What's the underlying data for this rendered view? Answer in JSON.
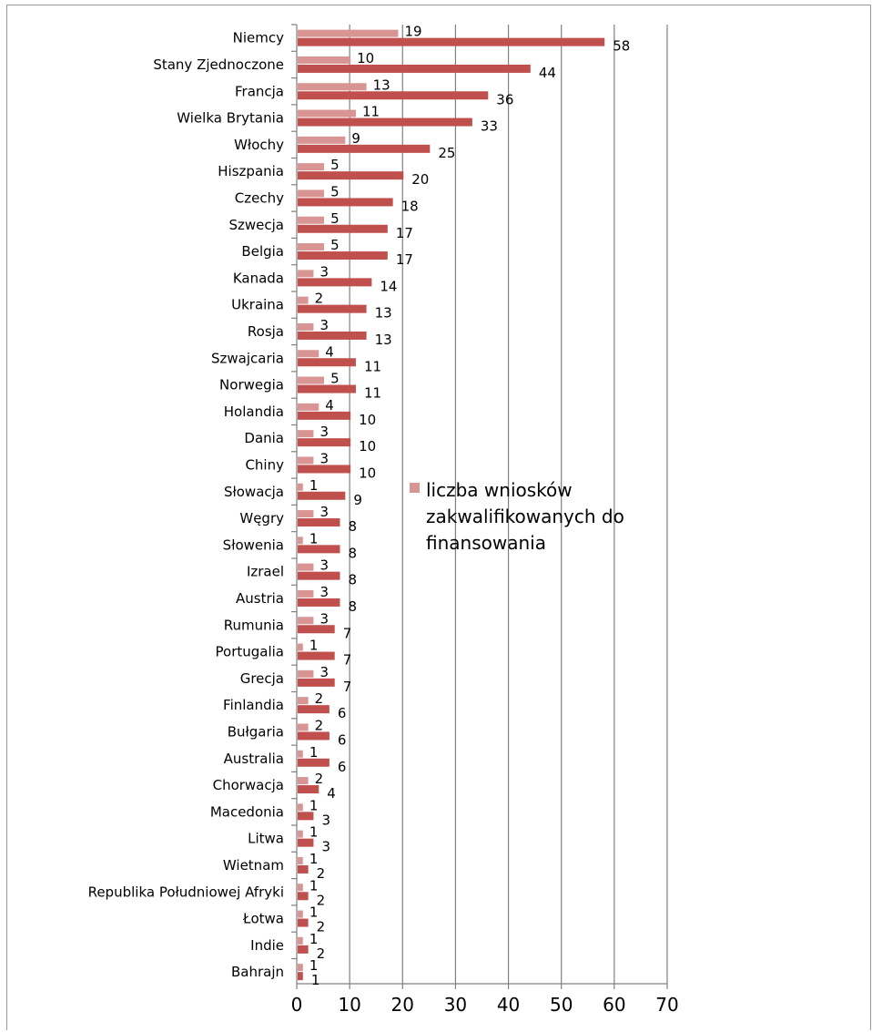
{
  "colors": {
    "series_light": "#d99594",
    "series_dark": "#c0504d",
    "grid": "#808080",
    "axis": "#808080"
  },
  "chart_data": {
    "type": "bar",
    "orientation": "horizontal",
    "categories": [
      "Niemcy",
      "Stany Zjednoczone",
      "Francja",
      "Wielka Brytania",
      "Włochy",
      "Hiszpania",
      "Czechy",
      "Szwecja",
      "Belgia",
      "Kanada",
      "Ukraina",
      "Rosja",
      "Szwajcaria",
      "Norwegia",
      "Holandia",
      "Dania",
      "Chiny",
      "Słowacja",
      "Węgry",
      "Słowenia",
      "Izrael",
      "Austria",
      "Rumunia",
      "Portugalia",
      "Grecja",
      "Finlandia",
      "Bułgaria",
      "Australia",
      "Chorwacja",
      "Macedonia",
      "Litwa",
      "Wietnam",
      "Republika Południowej Afryki",
      "Łotwa",
      "Indie",
      "Bahrajn"
    ],
    "series": [
      {
        "name": "liczba wniosków zakwalifikowanych do finansowania",
        "values": [
          19,
          10,
          13,
          11,
          9,
          5,
          5,
          5,
          5,
          3,
          2,
          3,
          4,
          5,
          4,
          3,
          3,
          1,
          3,
          1,
          3,
          3,
          3,
          1,
          3,
          2,
          2,
          1,
          2,
          1,
          1,
          1,
          1,
          1,
          1,
          1
        ]
      },
      {
        "values": [
          58,
          44,
          36,
          33,
          25,
          20,
          18,
          17,
          17,
          14,
          13,
          13,
          11,
          11,
          10,
          10,
          10,
          9,
          8,
          8,
          8,
          8,
          7,
          7,
          7,
          6,
          6,
          6,
          4,
          3,
          3,
          2,
          2,
          2,
          2,
          1
        ]
      }
    ],
    "x_ticks": [
      "0",
      "10",
      "20",
      "30",
      "40",
      "50",
      "60",
      "70"
    ],
    "xlim": [
      0,
      70
    ],
    "grid": "vertical",
    "legend": {
      "placement": "right-middle",
      "lines": [
        "liczba wniosków",
        "zakwalifikowanych do",
        "finansowania"
      ]
    }
  }
}
